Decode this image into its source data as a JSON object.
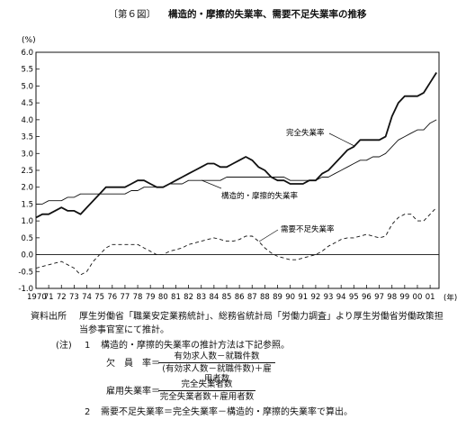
{
  "figure": {
    "number": "〔第６図〕",
    "title": "構造的・摩擦的失業率、需要不足失業率の推移"
  },
  "chart_data": {
    "type": "line",
    "ylabel": "(%)",
    "xlabel": "(年)",
    "ylim": [
      -1.0,
      6.0
    ],
    "yticks": [
      "6.0",
      "5.5",
      "5.0",
      "4.5",
      "4.0",
      "3.5",
      "3.0",
      "2.5",
      "2.0",
      "1.5",
      "1.0",
      "0.5",
      "0.0",
      "-0.5",
      "-1.0"
    ],
    "xticks": [
      "1970",
      "71",
      "72",
      "73",
      "74",
      "75",
      "76",
      "77",
      "78",
      "79",
      "80",
      "81",
      "82",
      "83",
      "84",
      "85",
      "86",
      "87",
      "88",
      "89",
      "90",
      "91",
      "92",
      "93",
      "94",
      "95",
      "96",
      "97",
      "98",
      "99",
      "00",
      "01"
    ],
    "x_unit_label": "(年)",
    "grid": false,
    "x": [
      1970.0,
      1970.5,
      1971.0,
      1971.5,
      1972.0,
      1972.5,
      1973.0,
      1973.5,
      1974.0,
      1974.5,
      1975.0,
      1975.5,
      1976.0,
      1976.5,
      1977.0,
      1977.5,
      1978.0,
      1978.5,
      1979.0,
      1979.5,
      1980.0,
      1980.5,
      1981.0,
      1981.5,
      1982.0,
      1982.5,
      1983.0,
      1983.5,
      1984.0,
      1984.5,
      1985.0,
      1985.5,
      1986.0,
      1986.5,
      1987.0,
      1987.5,
      1988.0,
      1988.5,
      1989.0,
      1989.5,
      1990.0,
      1990.5,
      1991.0,
      1991.5,
      1992.0,
      1992.5,
      1993.0,
      1993.5,
      1994.0,
      1994.5,
      1995.0,
      1995.5,
      1996.0,
      1996.5,
      1997.0,
      1997.5,
      1998.0,
      1998.5,
      1999.0,
      1999.5,
      2000.0,
      2000.5,
      2001.0,
      2001.5
    ],
    "series": [
      {
        "name": "完全失業率",
        "label": "完全失業率",
        "style": "solid-thick",
        "values": [
          1.1,
          1.2,
          1.2,
          1.3,
          1.4,
          1.3,
          1.3,
          1.2,
          1.4,
          1.6,
          1.8,
          2.0,
          2.0,
          2.0,
          2.0,
          2.1,
          2.2,
          2.2,
          2.1,
          2.0,
          2.0,
          2.1,
          2.2,
          2.3,
          2.4,
          2.5,
          2.6,
          2.7,
          2.7,
          2.6,
          2.6,
          2.7,
          2.8,
          2.9,
          2.8,
          2.6,
          2.5,
          2.3,
          2.2,
          2.2,
          2.1,
          2.1,
          2.1,
          2.2,
          2.2,
          2.4,
          2.5,
          2.7,
          2.9,
          3.1,
          3.2,
          3.4,
          3.4,
          3.4,
          3.4,
          3.5,
          4.1,
          4.5,
          4.7,
          4.7,
          4.7,
          4.8,
          5.1,
          5.4
        ]
      },
      {
        "name": "構造的・摩擦的失業率",
        "label": "構造的・摩擦的失業率",
        "style": "solid-thin",
        "values": [
          1.5,
          1.5,
          1.6,
          1.6,
          1.6,
          1.7,
          1.7,
          1.8,
          1.8,
          1.8,
          1.8,
          1.8,
          1.8,
          1.8,
          1.8,
          1.9,
          1.9,
          2.0,
          2.0,
          2.0,
          2.0,
          2.1,
          2.1,
          2.1,
          2.2,
          2.2,
          2.2,
          2.2,
          2.2,
          2.2,
          2.3,
          2.3,
          2.3,
          2.3,
          2.3,
          2.3,
          2.3,
          2.3,
          2.3,
          2.3,
          2.2,
          2.2,
          2.2,
          2.2,
          2.2,
          2.3,
          2.3,
          2.4,
          2.5,
          2.6,
          2.7,
          2.8,
          2.8,
          2.9,
          2.9,
          3.0,
          3.2,
          3.4,
          3.5,
          3.6,
          3.7,
          3.7,
          3.9,
          4.0
        ]
      },
      {
        "name": "需要不足失業率",
        "label": "需要不足失業率",
        "style": "dashed",
        "values": [
          -0.4,
          -0.35,
          -0.3,
          -0.25,
          -0.2,
          -0.3,
          -0.4,
          -0.6,
          -0.5,
          -0.2,
          0.0,
          0.2,
          0.3,
          0.3,
          0.3,
          0.3,
          0.3,
          0.2,
          0.1,
          0.0,
          0.0,
          0.1,
          0.15,
          0.2,
          0.3,
          0.35,
          0.4,
          0.45,
          0.5,
          0.45,
          0.4,
          0.4,
          0.45,
          0.55,
          0.55,
          0.4,
          0.2,
          0.05,
          -0.05,
          -0.1,
          -0.15,
          -0.15,
          -0.1,
          -0.05,
          0.0,
          0.1,
          0.25,
          0.35,
          0.45,
          0.5,
          0.5,
          0.55,
          0.6,
          0.55,
          0.5,
          0.55,
          0.9,
          1.1,
          1.2,
          1.2,
          1.0,
          1.0,
          1.2,
          1.4
        ]
      }
    ]
  },
  "notes": {
    "source_label": "資料出所",
    "source_line1": "厚生労働省「職業安定業務統計」、総務省統計局「労働力調査」より厚生労働省労働政策担",
    "source_line2": "当参事官室にて推計。",
    "note_label": "(注)",
    "n1_num": "1",
    "n1_text": "構造的・摩擦的失業率の推計方法は下記参照。",
    "vacancy_label": "欠　員　率＝",
    "vacancy_num": "有効求人数－就職件数",
    "vacancy_den": "(有効求人数－就職件数)",
    "vacancy_tail": "＋雇用者数",
    "emp_label": "雇用失業率＝",
    "emp_num": "完全失業者数",
    "emp_den": "完全失業者数＋雇用者数",
    "n2_num": "2",
    "n2_text": "需要不足失業率＝完全失業率－構造的・摩擦的失業率で算出。"
  }
}
